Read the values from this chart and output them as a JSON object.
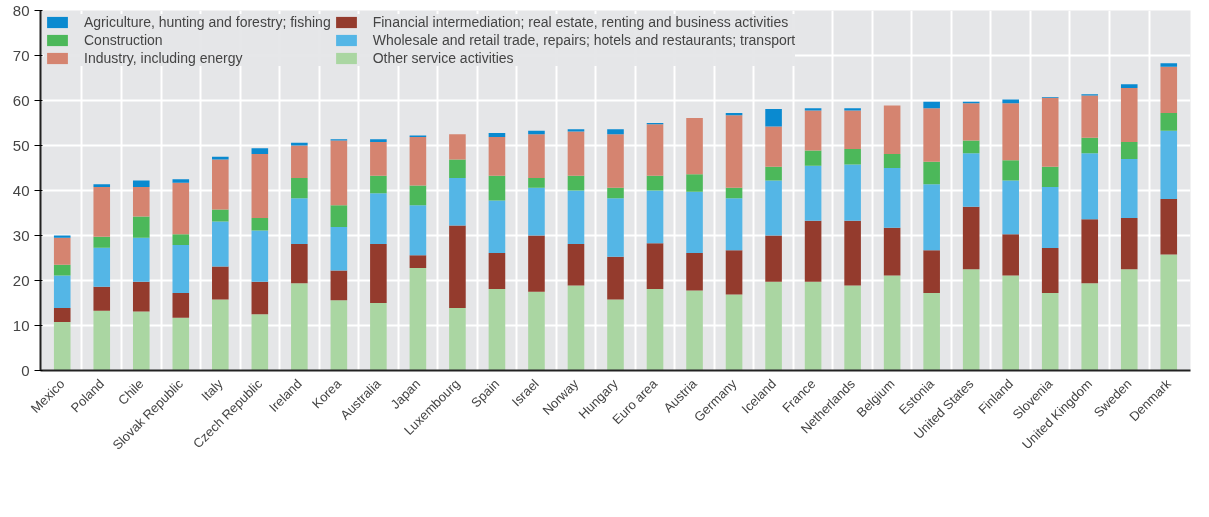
{
  "chart_data": {
    "type": "bar",
    "stacked": true,
    "categories": [
      "Mexico",
      "Poland",
      "Chile",
      "Slovak Republic",
      "Italy",
      "Czech Republic",
      "Ireland",
      "Korea",
      "Australia",
      "Japan",
      "Luxembourg",
      "Spain",
      "Israel",
      "Norway",
      "Hungary",
      "Euro area",
      "Austria",
      "Germany",
      "Iceland",
      "France",
      "Netherlands",
      "Belgium",
      "Estonia",
      "United States",
      "Finland",
      "Slovenia",
      "United Kingdom",
      "Sweden",
      "Denmark"
    ],
    "series": [
      {
        "name": "Other service activities",
        "color": "#aad6a2",
        "values": [
          10.8,
          13.3,
          13.1,
          11.7,
          15.8,
          12.5,
          19.4,
          15.6,
          15.0,
          22.8,
          13.9,
          18.1,
          17.5,
          18.9,
          15.8,
          18.1,
          17.8,
          16.9,
          19.7,
          19.7,
          18.9,
          21.1,
          17.2,
          22.5,
          21.1,
          17.2,
          19.4,
          22.5,
          25.8
        ]
      },
      {
        "name": "Financial intermediation; real estate, renting and business activities",
        "color": "#943b2d",
        "values": [
          3.1,
          5.3,
          6.6,
          5.5,
          7.3,
          7.2,
          8.7,
          6.6,
          13.1,
          2.8,
          18.3,
          8.0,
          12.5,
          9.2,
          9.5,
          10.2,
          8.3,
          9.8,
          10.3,
          13.6,
          14.4,
          10.6,
          9.5,
          13.9,
          9.2,
          10.0,
          14.2,
          11.4,
          12.3
        ]
      },
      {
        "name": "Wholesale and retail trade, repairs; hotels and restaurants; transport",
        "color": "#54b6e6",
        "values": [
          7.2,
          8.7,
          9.8,
          10.7,
          10.0,
          11.4,
          10.2,
          9.7,
          11.3,
          11.1,
          10.6,
          11.7,
          10.6,
          11.9,
          13.0,
          11.7,
          13.6,
          11.6,
          12.2,
          12.2,
          12.5,
          13.3,
          14.7,
          11.9,
          11.9,
          13.6,
          14.7,
          13.1,
          15.2
        ]
      },
      {
        "name": "Construction",
        "color": "#4cb85a",
        "values": [
          2.4,
          2.4,
          4.7,
          2.4,
          2.7,
          2.8,
          4.5,
          4.8,
          3.9,
          4.4,
          4.1,
          5.5,
          2.2,
          3.3,
          2.3,
          3.3,
          3.9,
          2.3,
          3.1,
          3.4,
          3.4,
          3.1,
          5.0,
          2.8,
          4.5,
          4.5,
          3.4,
          3.8,
          3.9
        ]
      },
      {
        "name": "Industry, including energy",
        "color": "#d58470",
        "values": [
          6.0,
          11.1,
          6.6,
          11.4,
          11.1,
          14.2,
          7.2,
          14.4,
          7.5,
          10.8,
          5.6,
          8.6,
          9.7,
          9.8,
          11.9,
          11.4,
          12.5,
          16.1,
          8.9,
          8.9,
          8.6,
          10.8,
          11.9,
          8.3,
          12.7,
          15.3,
          9.4,
          12.0,
          10.3
        ]
      },
      {
        "name": "Agriculture, hunting and forestry; fishing",
        "color": "#0a8ad0",
        "values": [
          0.5,
          0.6,
          1.4,
          0.8,
          0.6,
          1.3,
          0.6,
          0.3,
          0.6,
          0.3,
          0,
          0.9,
          0.8,
          0.5,
          1.1,
          0.3,
          0,
          0.5,
          3.9,
          0.5,
          0.5,
          0,
          1.4,
          0.3,
          0.8,
          0.2,
          0.3,
          0.8,
          0.8
        ]
      }
    ],
    "ylim": [
      0,
      80
    ],
    "yticks": [
      0,
      10,
      20,
      30,
      40,
      50,
      60,
      70,
      80
    ],
    "grid": true,
    "legend": "top"
  }
}
